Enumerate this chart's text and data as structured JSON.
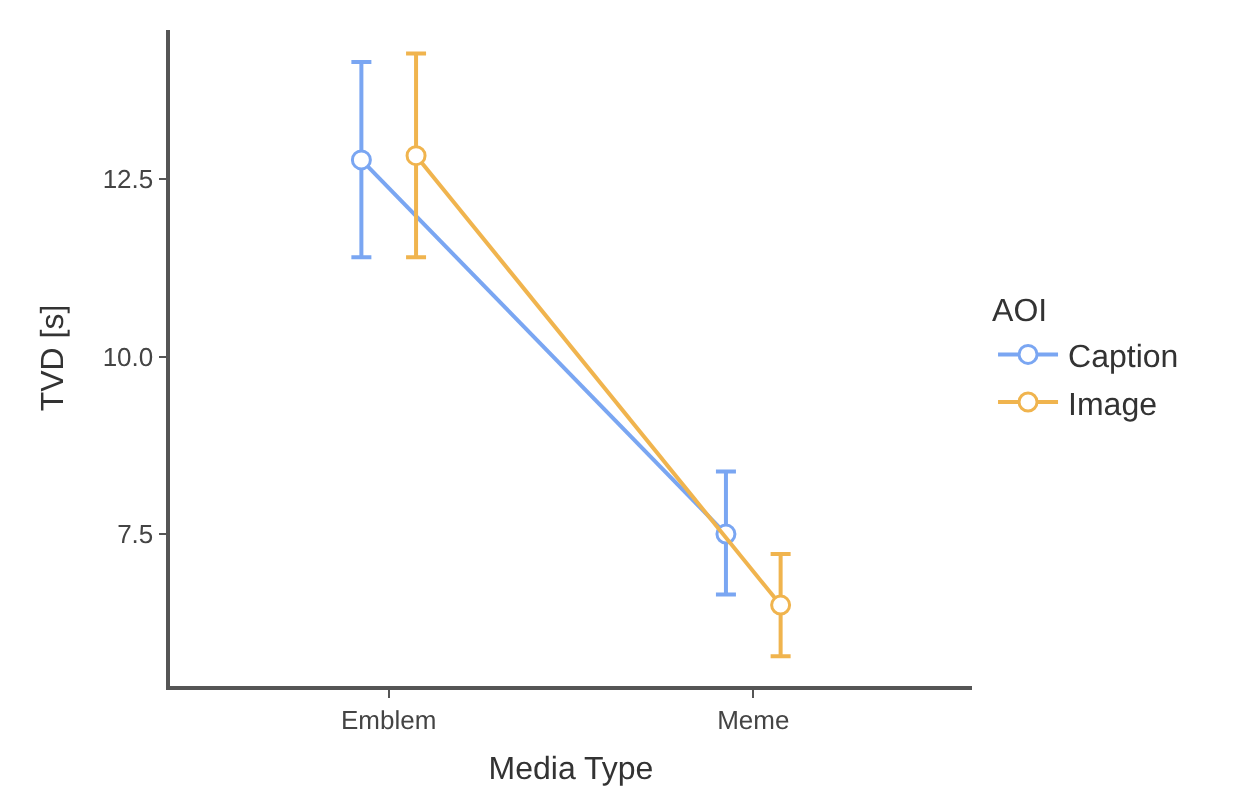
{
  "chart_data": {
    "type": "line",
    "xlabel": "Media Type",
    "ylabel": "TVD [s]",
    "legend_title": "AOI",
    "categories": [
      "Emblem",
      "Meme"
    ],
    "series": [
      {
        "name": "Caption",
        "color": "#7aa6f2",
        "values": [
          12.77,
          7.5
        ],
        "errors": [
          [
            11.4,
            14.15
          ],
          [
            6.65,
            8.38
          ]
        ]
      },
      {
        "name": "Image",
        "color": "#f0b44e",
        "values": [
          12.83,
          6.5
        ],
        "errors": [
          [
            11.4,
            14.27
          ],
          [
            5.78,
            7.22
          ]
        ]
      }
    ],
    "ylim": [
      5.36,
      14.6
    ],
    "yticks": [
      7.5,
      {
        "value": 10,
        "label": "10.0"
      },
      12.5
    ],
    "legend": "right",
    "marker": "circle",
    "line_style": "solid"
  }
}
